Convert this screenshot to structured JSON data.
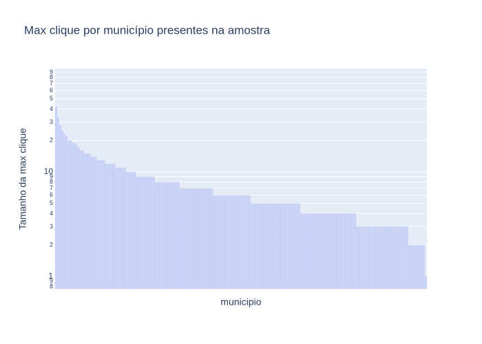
{
  "chart_data": {
    "type": "bar",
    "title": "Max clique por município presentes na amostra",
    "x_label": "municipio",
    "y_label": "Tamanho da max clique",
    "log_y": true,
    "grid": true,
    "color": "#c7d0f5",
    "ylim": [
      0.76,
      97
    ],
    "yticks": [
      {
        "value": 0.8,
        "label": "8"
      },
      {
        "value": 0.9,
        "label": "9"
      },
      1,
      {
        "value": 2,
        "label": "2"
      },
      {
        "value": 3,
        "label": "3"
      },
      {
        "value": 4,
        "label": "4"
      },
      {
        "value": 5,
        "label": "5"
      },
      {
        "value": 6,
        "label": "6"
      },
      {
        "value": 7,
        "label": "7"
      },
      {
        "value": 8,
        "label": "8"
      },
      {
        "value": 9,
        "label": "9"
      },
      10,
      {
        "value": 20,
        "label": "2"
      },
      {
        "value": 30,
        "label": "3"
      },
      {
        "value": 40,
        "label": "4"
      },
      {
        "value": 50,
        "label": "5"
      },
      {
        "value": 60,
        "label": "6"
      },
      {
        "value": 70,
        "label": "7"
      },
      {
        "value": 80,
        "label": "8"
      },
      {
        "value": 90,
        "label": "9"
      }
    ],
    "categories": [
      null,
      null,
      null,
      null,
      null,
      null,
      null,
      null,
      null,
      null,
      null,
      null,
      null,
      null,
      null,
      null,
      null,
      null,
      null,
      null,
      null,
      null,
      null,
      null,
      null,
      null,
      null,
      null,
      null,
      null,
      null,
      null,
      null,
      null,
      null,
      null,
      null,
      null,
      null,
      null,
      null,
      null,
      null,
      null,
      null,
      null,
      null,
      null,
      null,
      null,
      null,
      null,
      null,
      null,
      null,
      null,
      null,
      null,
      null,
      null,
      null,
      null,
      null,
      null,
      null,
      null,
      null,
      null,
      null,
      null,
      null,
      null,
      null,
      null,
      null,
      null,
      null,
      null,
      null,
      null,
      null,
      null,
      null,
      null,
      null,
      null,
      null,
      null,
      null,
      null,
      null,
      null,
      null,
      null,
      null,
      null,
      null,
      null,
      null,
      null,
      null,
      null,
      null,
      null,
      null,
      null,
      null,
      null,
      null,
      null,
      null,
      null,
      null,
      null,
      null,
      null,
      null,
      null,
      null,
      null,
      null,
      null,
      null,
      null,
      null,
      null,
      null,
      null,
      null,
      null,
      null,
      null,
      null,
      null,
      null,
      null,
      null,
      null,
      null,
      null,
      null,
      null,
      null,
      null,
      null,
      null,
      null,
      null,
      null,
      null,
      null,
      null,
      null,
      null,
      null,
      null,
      null,
      null,
      null,
      null,
      null,
      null,
      null,
      null,
      null,
      null,
      null,
      null,
      null,
      null,
      null,
      null,
      null,
      null,
      null,
      null,
      null,
      null,
      null
    ],
    "values": [
      42,
      33,
      28,
      25,
      23,
      22,
      20,
      20,
      19,
      19,
      18,
      17,
      16,
      16,
      15,
      15,
      15,
      14,
      14,
      14,
      13,
      13,
      13,
      13,
      12,
      12,
      12,
      12,
      12,
      11,
      11,
      11,
      11,
      11,
      10,
      10,
      10,
      10,
      10,
      9,
      9,
      9,
      9,
      9,
      9,
      9,
      9,
      9,
      8,
      8,
      8,
      8,
      8,
      8,
      8,
      8,
      8,
      8,
      8,
      8,
      7,
      7,
      7,
      7,
      7,
      7,
      7,
      7,
      7,
      7,
      7,
      7,
      7,
      7,
      7,
      7,
      6,
      6,
      6,
      6,
      6,
      6,
      6,
      6,
      6,
      6,
      6,
      6,
      6,
      6,
      6,
      6,
      6,
      6,
      5,
      5,
      5,
      5,
      5,
      5,
      5,
      5,
      5,
      5,
      5,
      5,
      5,
      5,
      5,
      5,
      5,
      5,
      5,
      5,
      5,
      5,
      5,
      5,
      4,
      4,
      4,
      4,
      4,
      4,
      4,
      4,
      4,
      4,
      4,
      4,
      4,
      4,
      4,
      4,
      4,
      4,
      4,
      4,
      4,
      4,
      4,
      4,
      4,
      4,
      4,
      3,
      3,
      3,
      3,
      3,
      3,
      3,
      3,
      3,
      3,
      3,
      3,
      3,
      3,
      3,
      3,
      3,
      3,
      3,
      3,
      3,
      3,
      3,
      3,
      3,
      2,
      2,
      2,
      2,
      2,
      2,
      2,
      2,
      1
    ]
  }
}
